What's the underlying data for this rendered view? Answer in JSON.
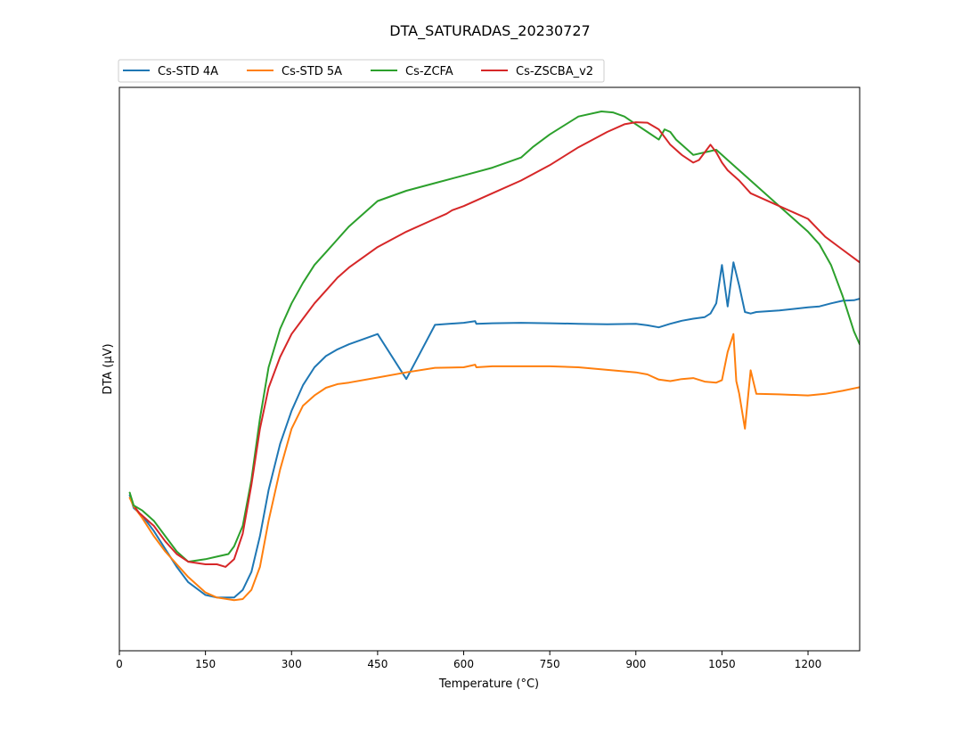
{
  "chart_data": {
    "type": "line",
    "title": "DTA_SATURADAS_20230727",
    "xlabel": "Temperature (°C)",
    "ylabel": "DTA (µV)",
    "xlim": [
      0,
      1290
    ],
    "ylim": [
      0,
      100
    ],
    "xticks": [
      0,
      150,
      300,
      450,
      600,
      750,
      900,
      1050,
      1200
    ],
    "yticks_shown": false,
    "grid": false,
    "legend_placement": "top-left, above plot, 4 columns",
    "series": [
      {
        "name": "Cs-STD 4A",
        "color": "#1f77b4",
        "x": [
          18,
          25,
          40,
          60,
          80,
          100,
          120,
          150,
          170,
          200,
          215,
          230,
          245,
          260,
          280,
          300,
          320,
          340,
          360,
          380,
          400,
          450,
          500,
          550,
          600,
          620,
          622,
          650,
          700,
          750,
          800,
          850,
          900,
          920,
          940,
          960,
          980,
          1000,
          1020,
          1030,
          1040,
          1050,
          1060,
          1070,
          1080,
          1090,
          1100,
          1110,
          1150,
          1200,
          1220,
          1240,
          1260,
          1280,
          1290
        ],
        "y": [
          25.0,
          22.5,
          21.0,
          18.0,
          14.5,
          11.0,
          8.0,
          5.5,
          5.0,
          5.0,
          6.5,
          10.0,
          17.0,
          26.0,
          35.0,
          41.5,
          46.5,
          50.0,
          52.2,
          53.5,
          54.5,
          56.5,
          47.7,
          58.3,
          58.7,
          59.0,
          58.5,
          58.6,
          58.7,
          58.6,
          58.5,
          58.4,
          58.5,
          58.2,
          57.8,
          58.5,
          59.1,
          59.5,
          59.8,
          60.5,
          62.5,
          70.0,
          61.9,
          70.5,
          66.0,
          60.8,
          60.5,
          60.8,
          61.1,
          61.7,
          61.9,
          62.5,
          63.0,
          63.1,
          63.4
        ]
      },
      {
        "name": "Cs-STD 5A",
        "color": "#ff7f0e",
        "x": [
          18,
          25,
          40,
          60,
          80,
          100,
          120,
          150,
          170,
          200,
          215,
          230,
          245,
          260,
          280,
          300,
          320,
          340,
          360,
          380,
          400,
          450,
          500,
          550,
          600,
          620,
          622,
          650,
          700,
          750,
          800,
          850,
          900,
          920,
          940,
          960,
          980,
          1000,
          1020,
          1040,
          1050,
          1060,
          1070,
          1075,
          1080,
          1090,
          1100,
          1110,
          1150,
          1200,
          1230,
          1260,
          1290
        ],
        "y": [
          24.5,
          22.8,
          20.5,
          17.0,
          14.0,
          11.5,
          9.0,
          6.0,
          5.0,
          4.5,
          4.7,
          6.5,
          11.0,
          20.0,
          30.0,
          38.0,
          42.5,
          44.5,
          46.0,
          46.7,
          47.0,
          48.0,
          49.0,
          49.9,
          50.0,
          50.5,
          50.0,
          50.2,
          50.2,
          50.2,
          50.0,
          49.5,
          49.0,
          48.6,
          47.6,
          47.3,
          47.7,
          47.9,
          47.2,
          47.0,
          47.5,
          53.0,
          56.5,
          47.3,
          44.9,
          38.0,
          49.4,
          44.8,
          44.7,
          44.5,
          44.8,
          45.4,
          46.1
        ]
      },
      {
        "name": "Cs-ZCFA",
        "color": "#2ca02c",
        "x": [
          18,
          25,
          40,
          60,
          80,
          100,
          120,
          150,
          170,
          190,
          200,
          215,
          230,
          245,
          260,
          280,
          300,
          320,
          340,
          360,
          380,
          400,
          450,
          500,
          550,
          600,
          650,
          700,
          720,
          750,
          800,
          840,
          860,
          880,
          900,
          920,
          940,
          950,
          960,
          970,
          980,
          1000,
          1040,
          1060,
          1080,
          1100,
          1130,
          1150,
          1170,
          1200,
          1220,
          1240,
          1260,
          1280,
          1290
        ],
        "y": [
          25.5,
          23.0,
          22.0,
          20.0,
          17.0,
          14.0,
          12.0,
          12.5,
          13.0,
          13.5,
          15.0,
          19.0,
          28.0,
          40.0,
          50.0,
          57.5,
          62.5,
          66.5,
          70.0,
          72.5,
          75.0,
          77.5,
          82.5,
          84.5,
          86.0,
          87.5,
          89.0,
          91.0,
          93.0,
          95.5,
          99.0,
          100.0,
          99.8,
          99.0,
          97.5,
          96.0,
          94.5,
          96.5,
          96.0,
          94.5,
          93.5,
          91.5,
          92.5,
          90.5,
          88.5,
          86.5,
          83.5,
          81.5,
          79.5,
          76.5,
          74.0,
          70.0,
          64.0,
          57.0,
          54.5
        ]
      },
      {
        "name": "Cs-ZSCBA_v2",
        "color": "#d62728",
        "x": [
          28,
          35,
          40,
          60,
          80,
          100,
          120,
          150,
          170,
          185,
          200,
          215,
          230,
          245,
          260,
          280,
          300,
          320,
          340,
          360,
          380,
          400,
          450,
          500,
          550,
          570,
          580,
          600,
          650,
          700,
          750,
          800,
          850,
          880,
          900,
          920,
          940,
          960,
          980,
          1000,
          1010,
          1020,
          1030,
          1040,
          1050,
          1060,
          1080,
          1100,
          1150,
          1200,
          1230,
          1260,
          1290
        ],
        "y": [
          22.5,
          21.5,
          21.0,
          19.0,
          16.0,
          13.5,
          12.0,
          11.5,
          11.5,
          11.0,
          12.5,
          17.5,
          27.0,
          38.0,
          46.0,
          52.0,
          56.5,
          59.5,
          62.5,
          65.0,
          67.5,
          69.5,
          73.5,
          76.5,
          79.0,
          80.0,
          80.7,
          81.5,
          84.0,
          86.5,
          89.5,
          93.0,
          96.0,
          97.5,
          97.9,
          97.8,
          96.5,
          93.5,
          91.5,
          90.0,
          90.5,
          92.0,
          93.5,
          92.0,
          90.0,
          88.5,
          86.5,
          84.0,
          81.5,
          79.0,
          75.5,
          73.0,
          70.5
        ]
      }
    ]
  }
}
